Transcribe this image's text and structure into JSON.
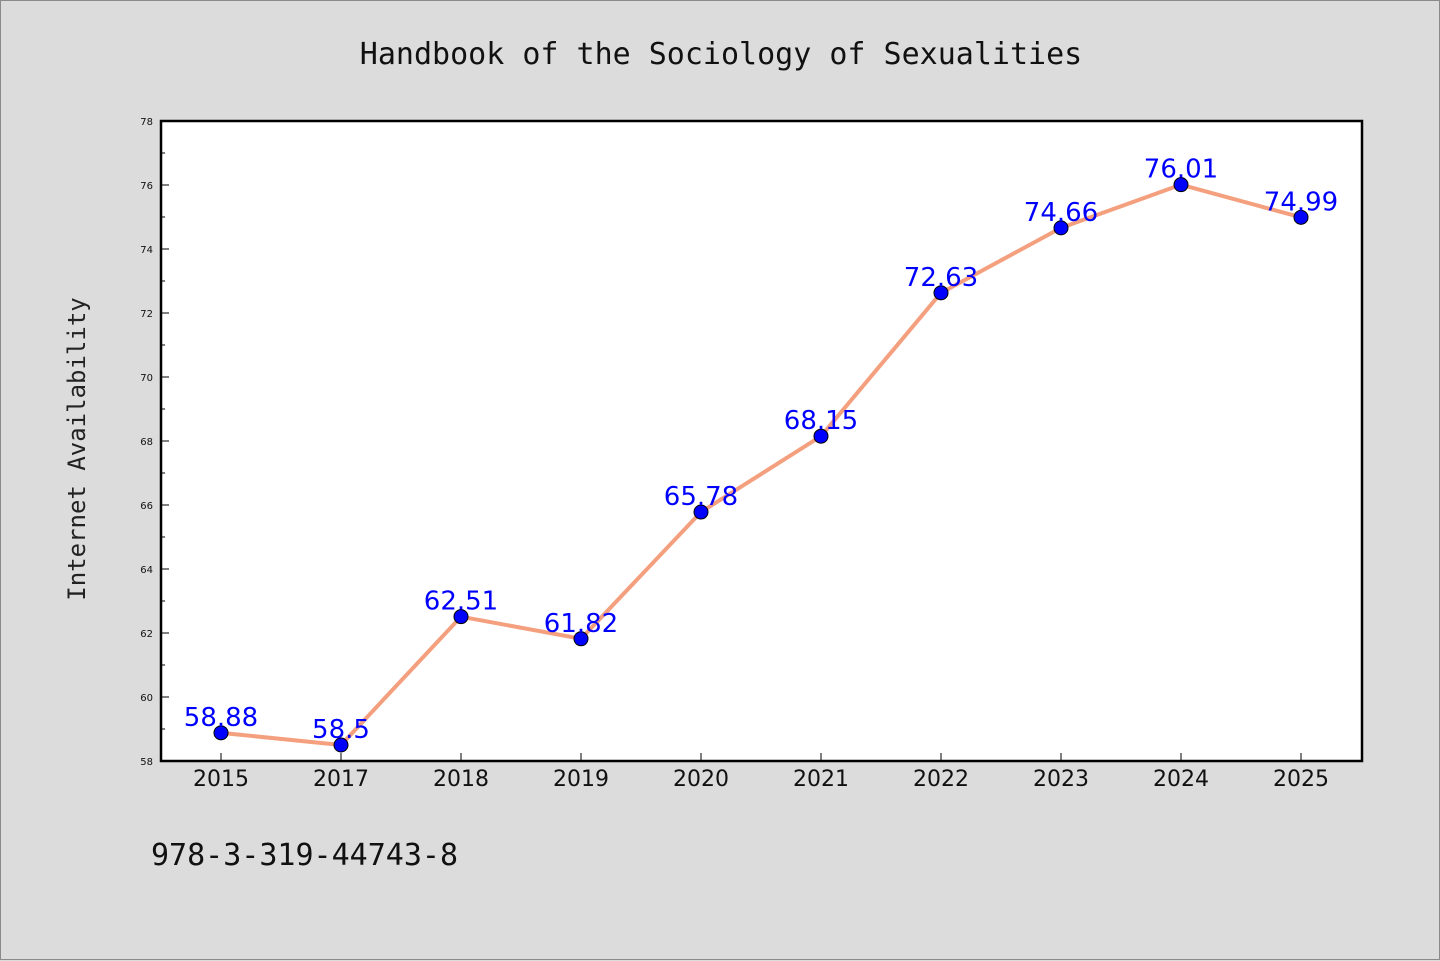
{
  "chart_data": {
    "type": "line",
    "title": "Handbook of the Sociology of Sexualities",
    "xlabel": "",
    "ylabel": "Internet Availability",
    "categories": [
      "2015",
      "2017",
      "2018",
      "2019",
      "2020",
      "2021",
      "2022",
      "2023",
      "2024",
      "2025"
    ],
    "series": [
      {
        "values": [
          58.88,
          58.5,
          62.51,
          61.82,
          65.78,
          68.15,
          72.63,
          74.66,
          76.01,
          74.99
        ],
        "data_labels": [
          "58.88",
          "58.5",
          "62.51",
          "61.82",
          "65.78",
          "68.15",
          "72.63",
          "74.66",
          "76.01",
          "74.99"
        ],
        "line_color": "#f4a07f",
        "marker_color": "#0000ff"
      }
    ],
    "ylim": [
      58,
      78
    ],
    "yticks": [
      "58",
      "60",
      "62",
      "64",
      "66",
      "68",
      "70",
      "72",
      "74",
      "76",
      "78"
    ],
    "grid": false,
    "legend": "none"
  },
  "footer": {
    "isbn": "978-3-319-44743-8"
  },
  "colors": {
    "background": "#dcdcdc",
    "plot_background": "#ffffff"
  }
}
